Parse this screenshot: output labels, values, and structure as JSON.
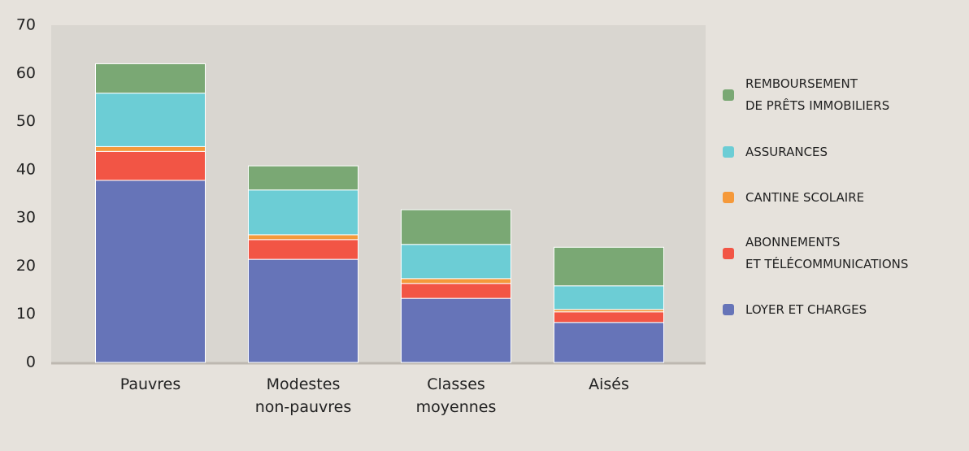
{
  "chart_data": {
    "type": "stacked_bar",
    "categories": [
      "Pauvres",
      "Modestes\nnon-pauvres",
      "Classes\nmoyennes",
      "Aisés"
    ],
    "series": [
      {
        "name": "LOYER ET CHARGES",
        "color": "#6674b8",
        "values": [
          37.8,
          21.4,
          13.3,
          8.3
        ]
      },
      {
        "name": "ABONNEMENTS\nET TÉLÉCOMMUNICATIONS",
        "color": "#f25545",
        "values": [
          6.0,
          4.1,
          3.1,
          2.2
        ]
      },
      {
        "name": "CANTINE SCOLAIRE",
        "color": "#f5993a",
        "values": [
          1.0,
          1.0,
          1.0,
          0.5
        ]
      },
      {
        "name": "ASSURANCES",
        "color": "#6ccdd5",
        "values": [
          11.1,
          9.3,
          7.1,
          4.9
        ]
      },
      {
        "name": "REMBOURSEMENT\nDE PRÊTS IMMOBILIERS",
        "color": "#7aa874",
        "values": [
          6.1,
          5.0,
          7.2,
          8.0
        ]
      }
    ],
    "ylim": [
      0,
      70
    ],
    "yticks": [
      0,
      10,
      20,
      30,
      40,
      50,
      60,
      70
    ]
  }
}
